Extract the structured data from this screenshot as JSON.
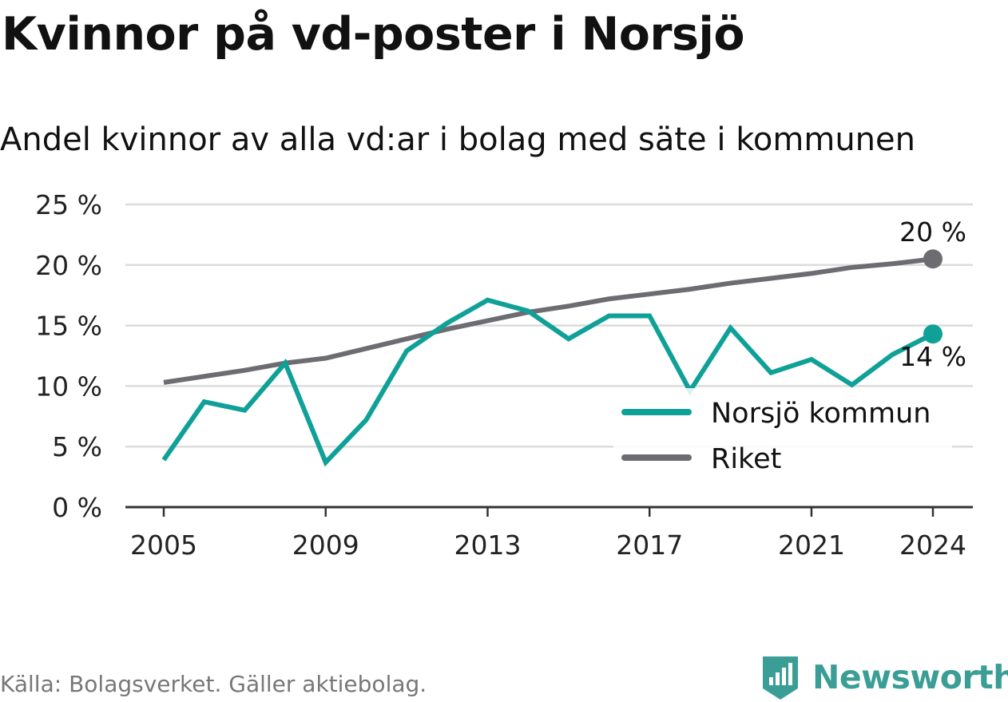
{
  "header": {
    "title": "Kvinnor på vd-poster i Norsjö",
    "subtitle": "Andel kvinnor av alla vd:ar i bolag med säte i kommunen"
  },
  "footer": {
    "source": "Källa: Bolagsverket. Gäller aktiebolag.",
    "brand": "Newsworthy",
    "brand_icon": "newsworthy-logo-icon"
  },
  "colors": {
    "norsjo": "#0fa197",
    "riket": "#6d6c72",
    "grid": "#dcdcdc",
    "axis": "#333333",
    "brand": "#3a9e96"
  },
  "chart_data": {
    "type": "line",
    "title": "Kvinnor på vd-poster i Norsjö",
    "subtitle": "Andel kvinnor av alla vd:ar i bolag med säte i kommunen",
    "xlabel": "",
    "ylabel": "",
    "x": [
      2005,
      2006,
      2007,
      2008,
      2009,
      2010,
      2011,
      2012,
      2013,
      2014,
      2015,
      2016,
      2017,
      2018,
      2019,
      2020,
      2021,
      2022,
      2023,
      2024
    ],
    "xticks": [
      "2005",
      "2009",
      "2013",
      "2017",
      "2021",
      "2024"
    ],
    "yticks": [
      "0 %",
      "5 %",
      "10 %",
      "15 %",
      "20 %",
      "25 %"
    ],
    "ylim": [
      0,
      25
    ],
    "grid": true,
    "legend_position": "bottom-right",
    "series": [
      {
        "name": "Norsjö kommun",
        "color": "#0fa197",
        "values": [
          3.9,
          8.7,
          8.0,
          11.9,
          3.7,
          7.2,
          12.9,
          15.2,
          17.1,
          16.2,
          13.9,
          15.8,
          15.8,
          9.6,
          14.8,
          11.1,
          12.2,
          10.1,
          12.6,
          14.3
        ],
        "end_label": "14 %"
      },
      {
        "name": "Riket",
        "color": "#6d6c72",
        "values": [
          10.3,
          10.8,
          11.3,
          11.9,
          12.3,
          13.1,
          13.9,
          14.7,
          15.4,
          16.1,
          16.6,
          17.2,
          17.6,
          18.0,
          18.5,
          18.9,
          19.3,
          19.8,
          20.1,
          20.5
        ],
        "end_label": "20 %"
      }
    ]
  }
}
